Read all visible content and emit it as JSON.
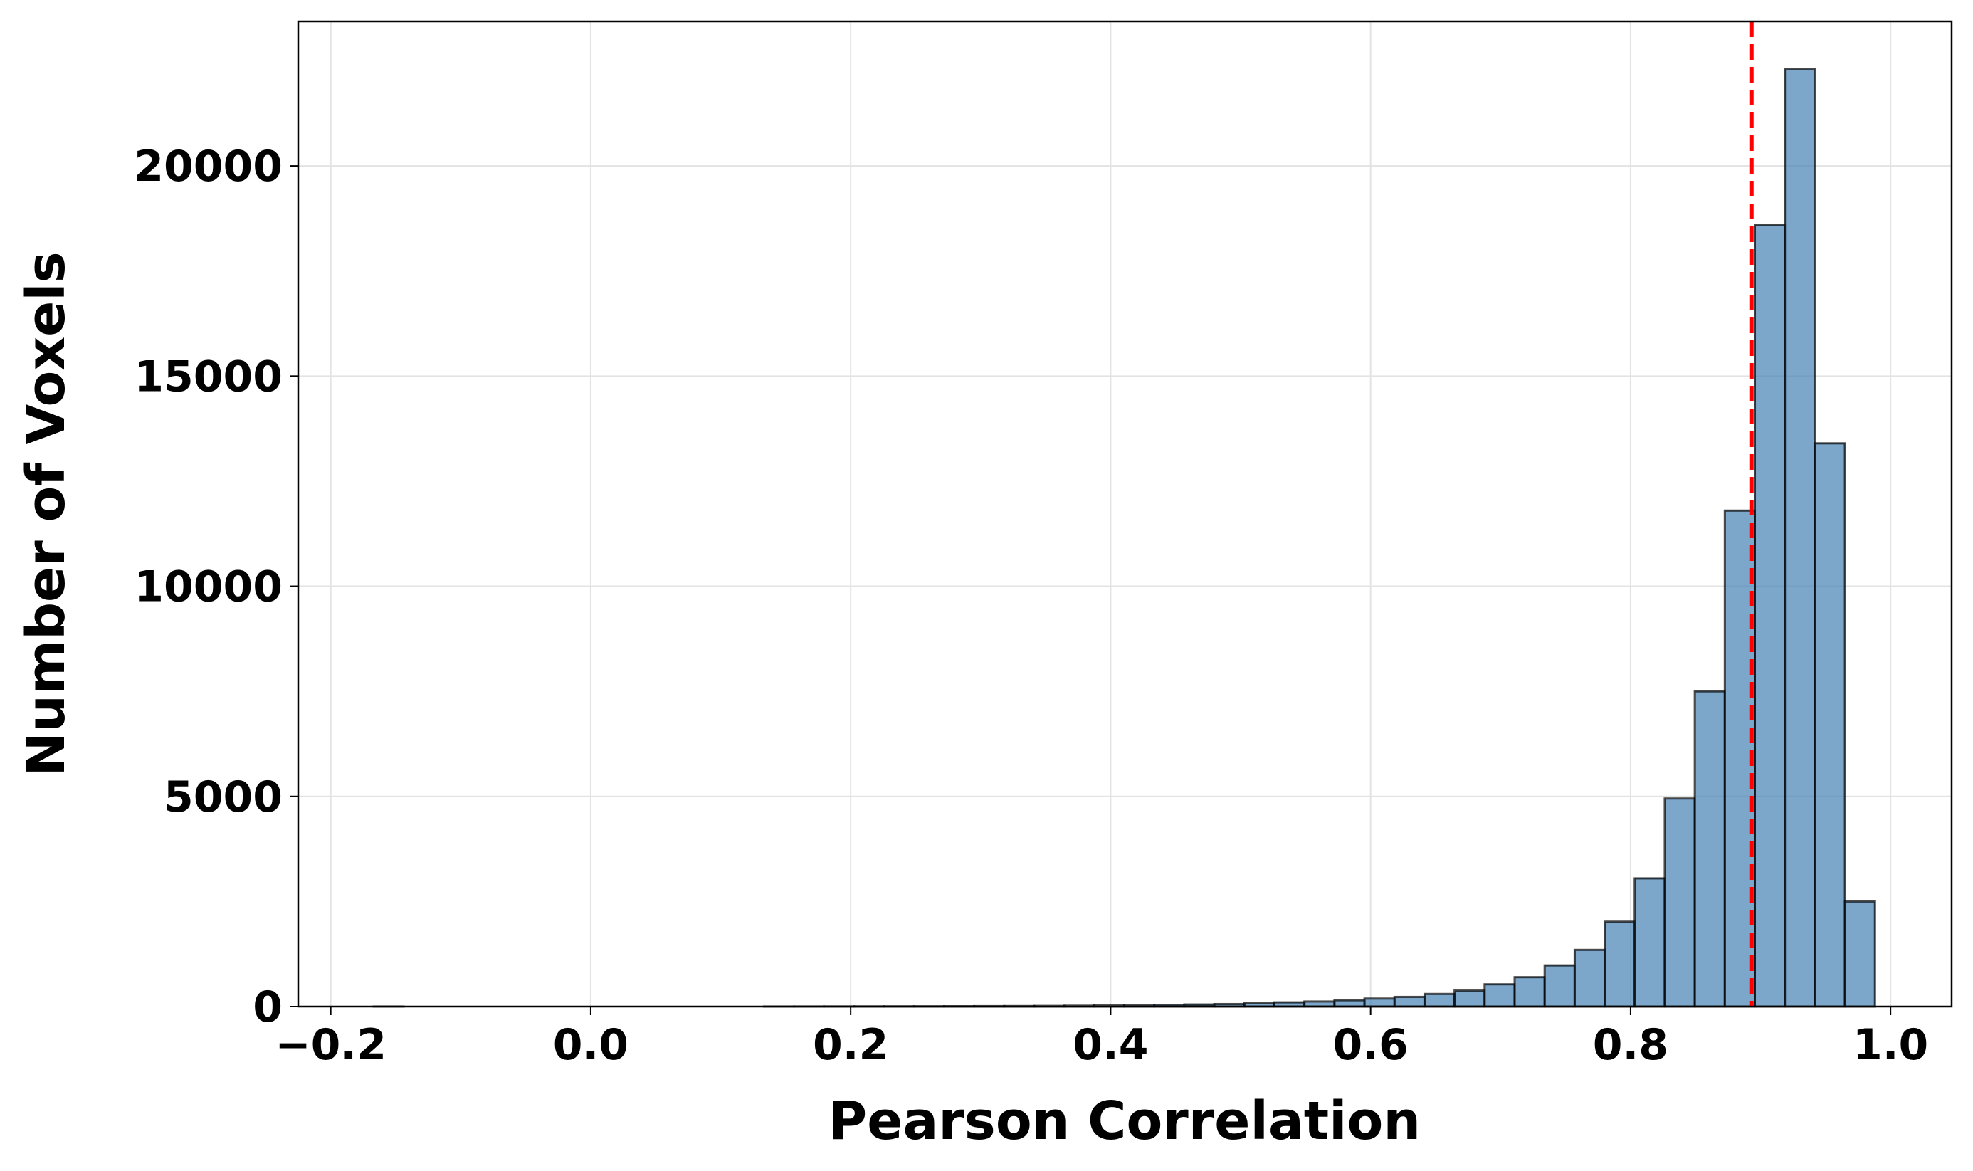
{
  "chart_data": {
    "type": "histogram",
    "x_label": "Pearson Correlation",
    "y_label": "Number of Voxels",
    "bins": [
      -0.167,
      -0.1439,
      -0.1208,
      -0.0977,
      -0.0746,
      -0.0515,
      -0.0284,
      -0.0053,
      0.0178,
      0.0409,
      0.064,
      0.0871,
      0.1102,
      0.1333,
      0.1564,
      0.1795,
      0.2026,
      0.2257,
      0.2488,
      0.2719,
      0.295,
      0.3181,
      0.3412,
      0.3643,
      0.3874,
      0.4105,
      0.4336,
      0.4567,
      0.4798,
      0.5029,
      0.526,
      0.5491,
      0.5722,
      0.5953,
      0.6184,
      0.6415,
      0.6646,
      0.6877,
      0.7108,
      0.7339,
      0.757,
      0.7801,
      0.8032,
      0.8263,
      0.8494,
      0.8725,
      0.8956,
      0.9187,
      0.9418,
      0.9649,
      0.988
    ],
    "values": [
      1,
      0,
      0,
      0,
      0,
      0,
      0,
      0,
      0,
      0,
      0,
      0,
      0,
      1,
      2,
      3,
      4,
      5,
      6,
      8,
      10,
      12,
      15,
      20,
      25,
      30,
      40,
      50,
      60,
      80,
      100,
      120,
      150,
      190,
      230,
      300,
      380,
      530,
      700,
      980,
      1350,
      2020,
      3050,
      4950,
      7500,
      11800,
      18600,
      22300,
      13400,
      2500
    ],
    "color": "#4682b4",
    "edgecolor": "#000000",
    "vline": {
      "value": 0.893,
      "color": "#ff0000",
      "style": "dashed"
    },
    "xlim": [
      -0.225,
      1.047
    ],
    "ylim": [
      0,
      23440
    ],
    "xticks": [
      {
        "value": -0.2,
        "label": "−0.2"
      },
      {
        "value": 0,
        "label": "0.0"
      },
      0.2,
      0.4,
      0.6,
      0.8,
      {
        "value": 1,
        "label": "1.0"
      }
    ],
    "yticks": [
      0,
      5000,
      10000,
      15000,
      20000
    ],
    "grid": true
  }
}
